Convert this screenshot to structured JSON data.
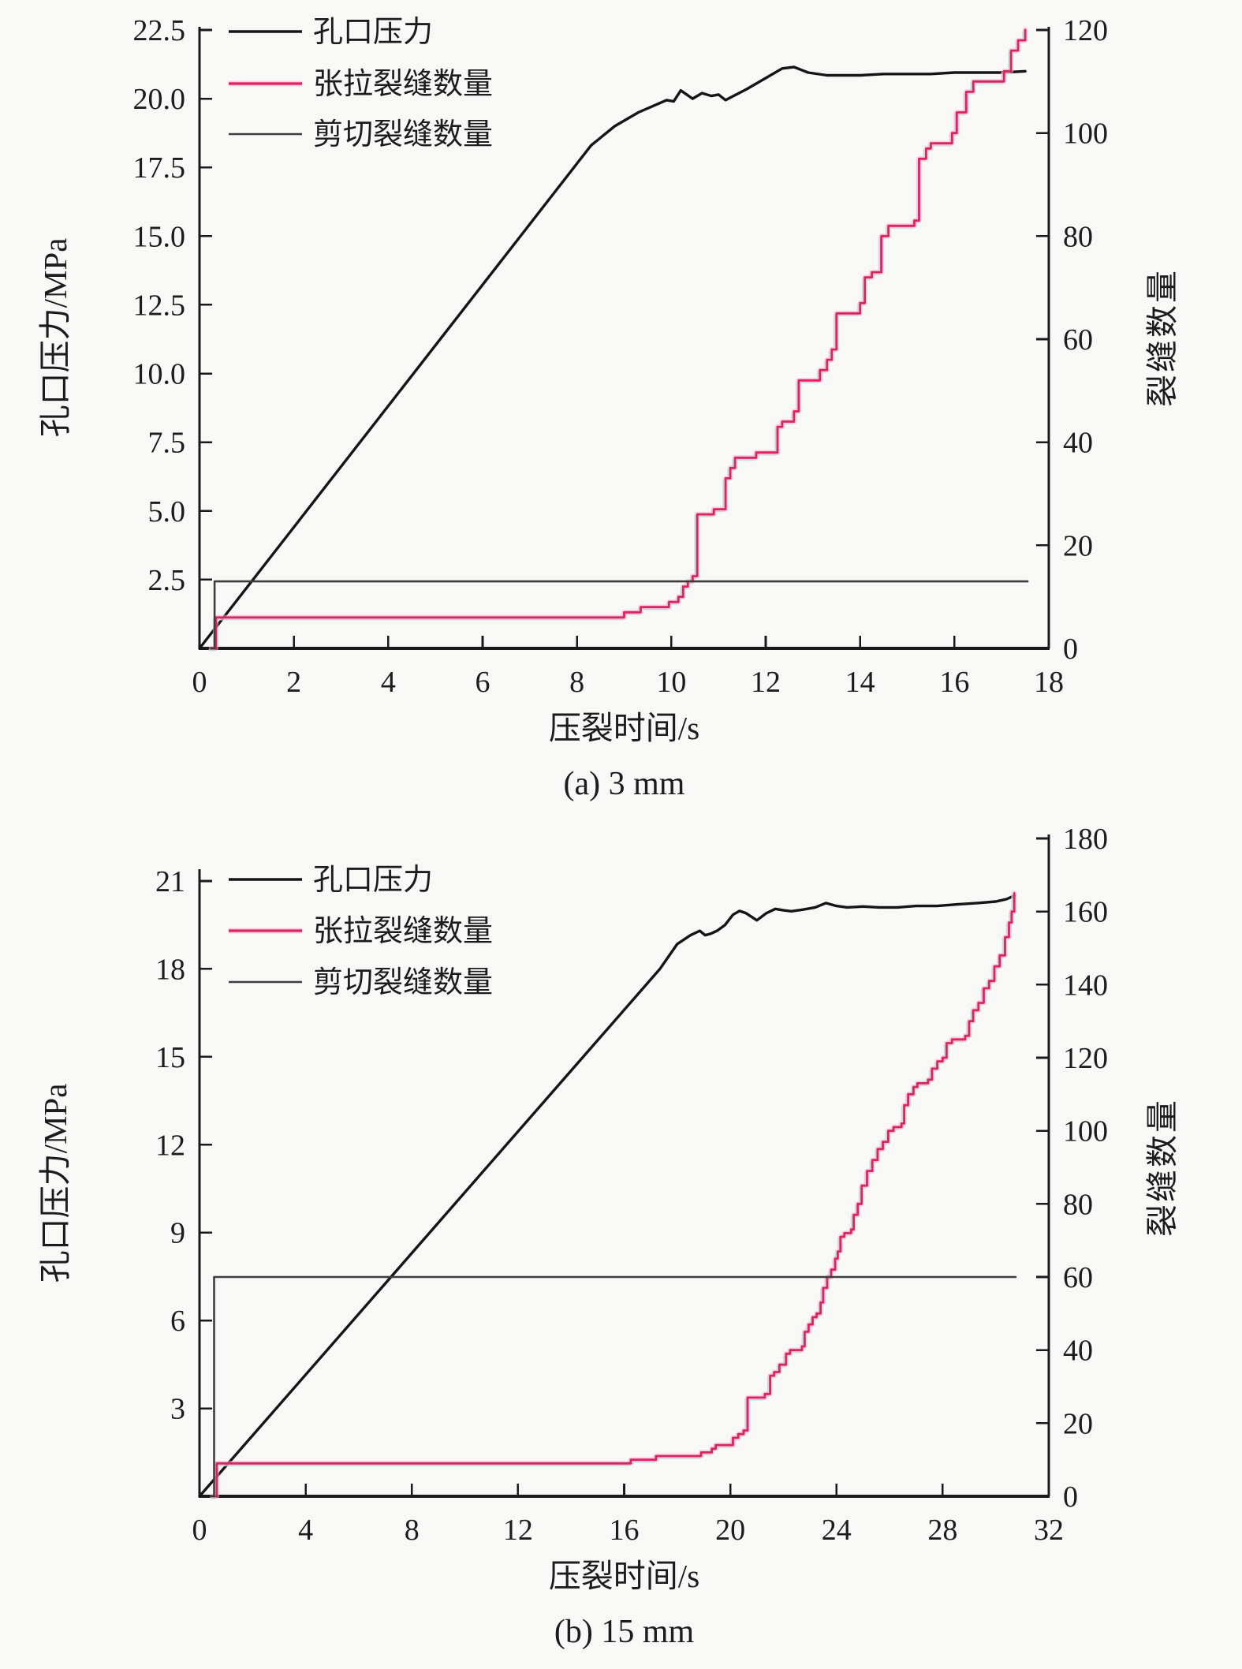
{
  "figure": {
    "background": "#f8f8f6",
    "text_color": "#1c1c1c"
  },
  "chart_data": [
    {
      "type": "line",
      "caption": "(a) 3 mm",
      "xlabel": "压裂时间/s",
      "ylabel_left": "孔口压力/MPa",
      "ylabel_right": "裂缝数量",
      "xlim": [
        0,
        18
      ],
      "ylim_left": [
        0,
        22.5
      ],
      "ylim_right": [
        0,
        120
      ],
      "grid": false,
      "legend_position": "upper-left",
      "xticks": {
        "values": [
          0,
          2,
          4,
          6,
          8,
          10,
          12,
          14,
          16,
          18
        ],
        "labels": [
          "0",
          "2",
          "4",
          "6",
          "8",
          "10",
          "12",
          "14",
          "16",
          "18"
        ]
      },
      "yticks_left": {
        "values": [
          2.5,
          5,
          7.5,
          10,
          12.5,
          15,
          17.5,
          20,
          22.5
        ],
        "labels": [
          "2.5",
          "5.0",
          "7.5",
          "10.0",
          "12.5",
          "15.0",
          "17.5",
          "20.0",
          "22.5"
        ]
      },
      "yticks_right": {
        "values": [
          0,
          20,
          40,
          60,
          80,
          100,
          120
        ],
        "labels": [
          "0",
          "20",
          "40",
          "60",
          "80",
          "100",
          "120"
        ]
      },
      "legend": [
        {
          "label": "孔口压力",
          "series": "pressure"
        },
        {
          "label": "张拉裂缝数量",
          "series": "tensile"
        },
        {
          "label": "剪切裂缝数量",
          "series": "shear"
        }
      ],
      "series": [
        {
          "name": "孔口压力",
          "key": "pressure",
          "axis": "left",
          "draw": "line",
          "color": "#151515",
          "width": 3.4,
          "points": [
            [
              0,
              0
            ],
            [
              8.3,
              18.3
            ],
            [
              8.8,
              19.0
            ],
            [
              9.3,
              19.5
            ],
            [
              9.9,
              19.95
            ],
            [
              10.05,
              19.9
            ],
            [
              10.2,
              20.3
            ],
            [
              10.45,
              20.0
            ],
            [
              10.65,
              20.2
            ],
            [
              10.85,
              20.1
            ],
            [
              11.0,
              20.15
            ],
            [
              11.15,
              19.95
            ],
            [
              11.6,
              20.35
            ],
            [
              12.0,
              20.75
            ],
            [
              12.35,
              21.1
            ],
            [
              12.6,
              21.15
            ],
            [
              12.9,
              20.95
            ],
            [
              13.3,
              20.85
            ],
            [
              14.0,
              20.85
            ],
            [
              14.5,
              20.9
            ],
            [
              15.0,
              20.9
            ],
            [
              15.5,
              20.9
            ],
            [
              16.0,
              20.95
            ],
            [
              16.5,
              20.95
            ],
            [
              17.0,
              20.95
            ],
            [
              17.5,
              21.0
            ]
          ]
        },
        {
          "name": "张拉裂缝数量",
          "key": "tensile",
          "axis": "right",
          "draw": "step",
          "color": "#da2565",
          "halo": "#ffa8c8",
          "ghost": "#a7ece5",
          "width": 2.8,
          "points": [
            [
              0.25,
              0
            ],
            [
              0.35,
              6
            ],
            [
              9.0,
              7
            ],
            [
              9.35,
              8
            ],
            [
              9.95,
              9
            ],
            [
              10.15,
              10
            ],
            [
              10.25,
              12
            ],
            [
              10.35,
              13
            ],
            [
              10.45,
              14
            ],
            [
              10.55,
              26
            ],
            [
              10.9,
              27
            ],
            [
              11.15,
              33
            ],
            [
              11.25,
              35
            ],
            [
              11.35,
              37
            ],
            [
              11.8,
              38
            ],
            [
              12.25,
              43
            ],
            [
              12.35,
              44
            ],
            [
              12.6,
              46
            ],
            [
              12.7,
              52
            ],
            [
              13.15,
              54
            ],
            [
              13.3,
              56
            ],
            [
              13.4,
              58
            ],
            [
              13.5,
              65
            ],
            [
              14.0,
              67
            ],
            [
              14.1,
              72
            ],
            [
              14.25,
              73
            ],
            [
              14.45,
              80
            ],
            [
              14.6,
              82
            ],
            [
              15.15,
              83
            ],
            [
              15.25,
              95
            ],
            [
              15.4,
              97
            ],
            [
              15.5,
              98
            ],
            [
              15.95,
              100
            ],
            [
              16.05,
              104
            ],
            [
              16.25,
              108
            ],
            [
              16.4,
              110
            ],
            [
              17.05,
              112
            ],
            [
              17.2,
              116
            ],
            [
              17.35,
              118
            ],
            [
              17.5,
              120
            ]
          ]
        },
        {
          "name": "剪切裂缝数量",
          "key": "shear",
          "axis": "right",
          "draw": "step",
          "color": "#3d3d3d",
          "width": 2.6,
          "points": [
            [
              0.25,
              0
            ],
            [
              0.32,
              13
            ],
            [
              17.55,
              13
            ]
          ]
        }
      ]
    },
    {
      "type": "line",
      "caption": "(b) 15 mm",
      "xlabel": "压裂时间/s",
      "ylabel_left": "孔口压力/MPa",
      "ylabel_right": "裂缝数量",
      "xlim": [
        0,
        32
      ],
      "ylim_left": [
        0,
        21
      ],
      "ylim_right": [
        0,
        180
      ],
      "grid": false,
      "legend_position": "upper-left",
      "xticks": {
        "values": [
          0,
          4,
          8,
          12,
          16,
          20,
          24,
          28,
          32
        ],
        "labels": [
          "0",
          "4",
          "8",
          "12",
          "16",
          "20",
          "24",
          "28",
          "32"
        ]
      },
      "yticks_left": {
        "values": [
          3,
          6,
          9,
          12,
          15,
          18,
          21
        ],
        "labels": [
          "3",
          "6",
          "9",
          "12",
          "15",
          "18",
          "21"
        ]
      },
      "yticks_right": {
        "values": [
          0,
          20,
          40,
          60,
          80,
          100,
          120,
          140,
          160,
          180
        ],
        "labels": [
          "0",
          "20",
          "40",
          "60",
          "80",
          "100",
          "120",
          "140",
          "160",
          "180"
        ]
      },
      "legend": [
        {
          "label": "孔口压力",
          "series": "pressure"
        },
        {
          "label": "张拉裂缝数量",
          "series": "tensile"
        },
        {
          "label": "剪切裂缝数量",
          "series": "shear"
        }
      ],
      "series": [
        {
          "name": "孔口压力",
          "key": "pressure",
          "axis": "left",
          "draw": "line",
          "color": "#151515",
          "width": 3.4,
          "points": [
            [
              0,
              0
            ],
            [
              17.35,
              18.0
            ],
            [
              18.0,
              18.85
            ],
            [
              18.5,
              19.15
            ],
            [
              18.85,
              19.3
            ],
            [
              19.05,
              19.15
            ],
            [
              19.25,
              19.2
            ],
            [
              19.5,
              19.3
            ],
            [
              19.8,
              19.5
            ],
            [
              20.1,
              19.85
            ],
            [
              20.35,
              19.98
            ],
            [
              20.6,
              19.9
            ],
            [
              21.0,
              19.66
            ],
            [
              21.35,
              19.9
            ],
            [
              21.7,
              20.05
            ],
            [
              22.0,
              20.0
            ],
            [
              22.3,
              19.97
            ],
            [
              22.7,
              20.02
            ],
            [
              23.2,
              20.1
            ],
            [
              23.6,
              20.25
            ],
            [
              24.0,
              20.15
            ],
            [
              24.4,
              20.1
            ],
            [
              25.0,
              20.13
            ],
            [
              25.6,
              20.1
            ],
            [
              26.3,
              20.1
            ],
            [
              27.0,
              20.15
            ],
            [
              27.8,
              20.15
            ],
            [
              28.5,
              20.2
            ],
            [
              29.3,
              20.25
            ],
            [
              30.0,
              20.3
            ],
            [
              30.4,
              20.38
            ],
            [
              30.7,
              20.5
            ]
          ]
        },
        {
          "name": "张拉裂缝数量",
          "key": "tensile",
          "axis": "right",
          "draw": "step",
          "color": "#da2565",
          "halo": "#ffa8c8",
          "ghost": "#a7ece5",
          "width": 2.8,
          "points": [
            [
              0.5,
              0
            ],
            [
              0.65,
              9
            ],
            [
              16.25,
              10
            ],
            [
              17.2,
              11
            ],
            [
              18.9,
              12
            ],
            [
              19.3,
              13
            ],
            [
              19.45,
              14
            ],
            [
              20.1,
              16
            ],
            [
              20.3,
              17
            ],
            [
              20.5,
              18
            ],
            [
              20.65,
              27
            ],
            [
              21.3,
              28
            ],
            [
              21.5,
              33
            ],
            [
              21.65,
              34
            ],
            [
              21.85,
              36
            ],
            [
              22.1,
              39
            ],
            [
              22.25,
              40
            ],
            [
              22.7,
              41
            ],
            [
              22.8,
              45
            ],
            [
              22.95,
              47
            ],
            [
              23.1,
              49
            ],
            [
              23.25,
              50
            ],
            [
              23.4,
              53
            ],
            [
              23.5,
              57
            ],
            [
              23.65,
              60
            ],
            [
              23.8,
              62
            ],
            [
              23.95,
              65
            ],
            [
              24.05,
              67
            ],
            [
              24.15,
              71
            ],
            [
              24.3,
              72
            ],
            [
              24.55,
              73
            ],
            [
              24.65,
              77
            ],
            [
              24.8,
              80
            ],
            [
              24.95,
              85
            ],
            [
              25.15,
              89
            ],
            [
              25.35,
              92
            ],
            [
              25.55,
              95
            ],
            [
              25.75,
              97
            ],
            [
              25.95,
              100
            ],
            [
              26.15,
              101
            ],
            [
              26.45,
              102
            ],
            [
              26.55,
              107
            ],
            [
              26.7,
              110
            ],
            [
              26.9,
              112
            ],
            [
              27.05,
              113
            ],
            [
              27.45,
              114
            ],
            [
              27.6,
              117
            ],
            [
              27.8,
              119
            ],
            [
              28.0,
              120
            ],
            [
              28.15,
              124
            ],
            [
              28.35,
              125
            ],
            [
              28.85,
              126
            ],
            [
              29.0,
              130
            ],
            [
              29.15,
              133
            ],
            [
              29.35,
              135
            ],
            [
              29.55,
              139
            ],
            [
              29.75,
              141
            ],
            [
              29.95,
              145
            ],
            [
              30.15,
              148
            ],
            [
              30.35,
              153
            ],
            [
              30.5,
              157
            ],
            [
              30.6,
              160
            ],
            [
              30.7,
              165
            ]
          ]
        },
        {
          "name": "剪切裂缝数量",
          "key": "shear",
          "axis": "right",
          "draw": "step",
          "color": "#3d3d3d",
          "width": 2.6,
          "points": [
            [
              0.45,
              0
            ],
            [
              0.55,
              60
            ],
            [
              30.75,
              60
            ]
          ]
        }
      ]
    }
  ]
}
